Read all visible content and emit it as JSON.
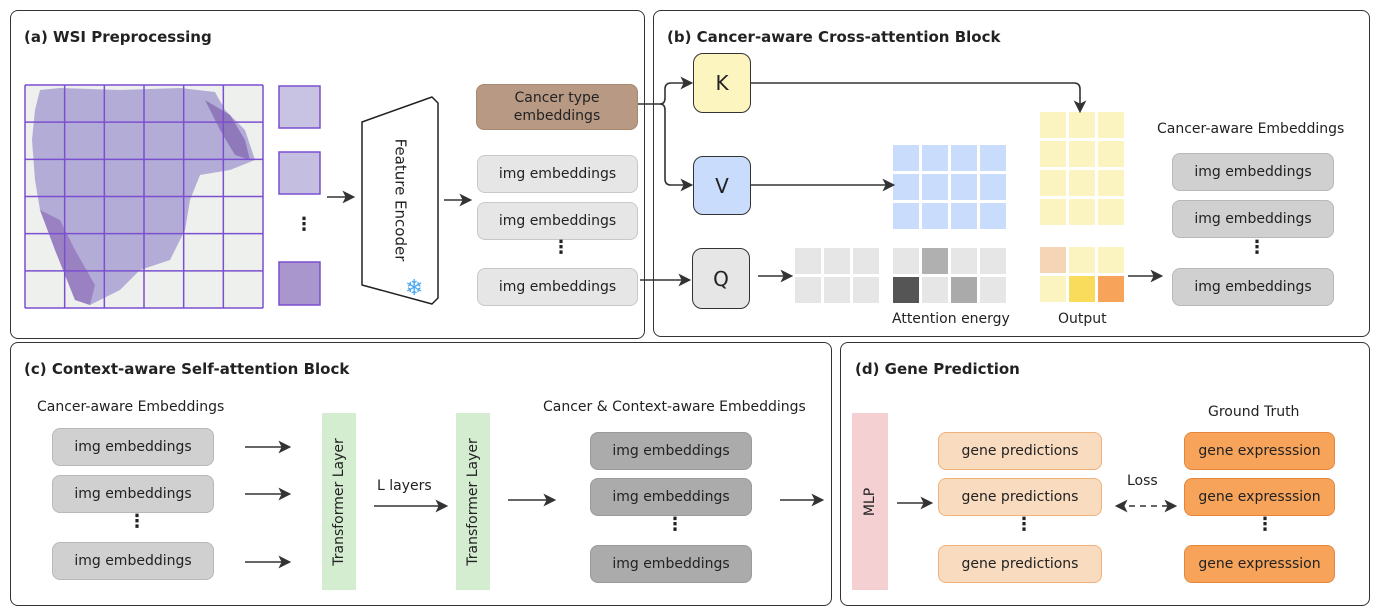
{
  "panels": {
    "a": {
      "title": "(a) WSI Preprocessing",
      "encoder": "Feature Encoder",
      "cancer_box": "Cancer type embeddings",
      "img_label": "img embeddings",
      "dots": "⋮",
      "snowflake": "❄"
    },
    "b": {
      "title": "(b) Cancer-aware Cross-attention Block",
      "k": "K",
      "v": "V",
      "q": "Q",
      "attention_label": "Attention energy",
      "output_label": "Output",
      "embeddings_label": "Cancer-aware Embeddings",
      "img_label": "img embeddings",
      "dots": "⋮"
    },
    "c": {
      "title": "(c) Context-aware Self-attention Block",
      "input_label": "Cancer-aware Embeddings",
      "img_label": "img embeddings",
      "transformer": "Transformer Layer",
      "layers_label": "L layers",
      "output_label": "Cancer & Context-aware Embeddings",
      "dots": "⋮"
    },
    "d": {
      "title": "(d) Gene Prediction",
      "mlp": "MLP",
      "pred_label": "gene predictions",
      "gt_label": "Ground Truth",
      "gt_box": "gene expresssion",
      "loss": "Loss",
      "dots": "⋮"
    }
  },
  "colors": {
    "cancer_type": "#b89a84",
    "k": "#fdf5c0",
    "v": "#c9dcfb",
    "q": "#e6e6e6",
    "value_grid": "#c9dcfb",
    "output_grid": "#fbf3c0",
    "query_grid": "#e6e6e6",
    "transformer": "#d4ecd0",
    "mlp": "#f5d0d2",
    "grid_line": "#7b4fd0"
  },
  "attention_energy": [
    [
      "#e6e6e6",
      "#b0b0b0",
      "#e6e6e6",
      "#e6e6e6"
    ],
    [
      "#555555",
      "#e6e6e6",
      "#aaaaaa",
      "#e6e6e6"
    ]
  ],
  "output_small": [
    [
      "#f6d4b6",
      "#fbf3c0",
      "#fbf3c0"
    ],
    [
      "#fbf3c0",
      "#fadc5c",
      "#f7a35a"
    ]
  ]
}
